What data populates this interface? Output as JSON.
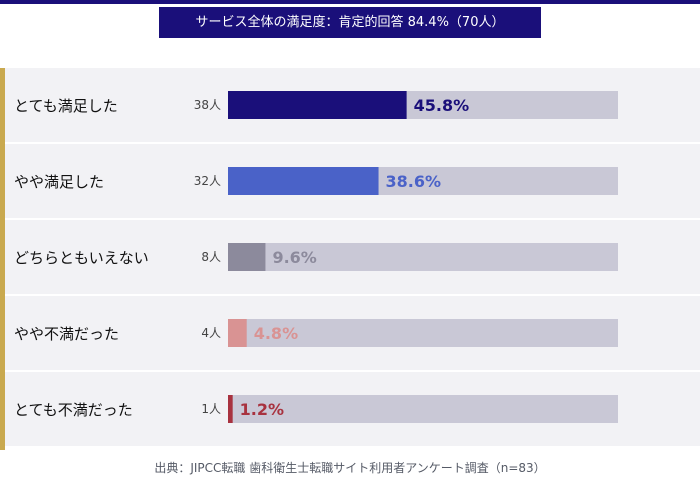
{
  "header": {
    "title": "サービス全体の満足度：肯定的回答 84.4%（70人）"
  },
  "chart_data": {
    "type": "bar",
    "orientation": "horizontal",
    "categories": [
      "とても満足した",
      "やや満足した",
      "どちらともいえない",
      "やや不満だった",
      "とても不満だった"
    ],
    "counts": [
      "38人",
      "32人",
      "8人",
      "4人",
      "1人"
    ],
    "values": [
      45.8,
      38.6,
      9.6,
      4.8,
      1.2
    ],
    "value_labels": [
      "45.8%",
      "38.6%",
      "9.6%",
      "4.8%",
      "1.2%"
    ],
    "xlim": [
      0,
      100
    ],
    "title": "サービス全体の満足度：肯定的回答 84.4%（70人）",
    "xlabel": "",
    "ylabel": "",
    "legend": "none",
    "grid": false
  },
  "colors": {
    "header_bg": "#1a0f7a",
    "top_rule": "#1a0f7a",
    "accent_bar": "#c9a94f",
    "row_bg": "#f2f2f5",
    "track": "#c9c8d6",
    "bar_colors": [
      "#1a0f7a",
      "#4a62c8",
      "#8c8a9c",
      "#d99393",
      "#a8323f"
    ],
    "label_colors": [
      "#1a0f7a",
      "#4a62c8",
      "#8c8a9c",
      "#d99393",
      "#a8323f"
    ]
  },
  "footer": {
    "source": "出典：JIPCC転職 歯科衛生士転職サイト利用者アンケート調査（n=83）"
  }
}
